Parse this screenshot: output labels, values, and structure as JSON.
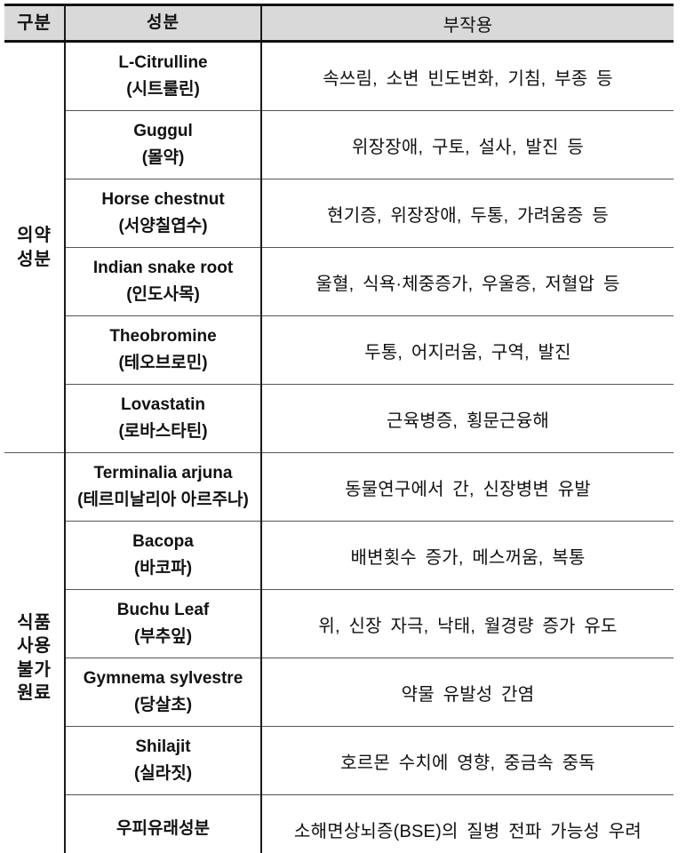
{
  "colors": {
    "header_bg": "#d9d9d9",
    "border_heavy": "#111111",
    "border_thin": "#555555",
    "text": "#111111"
  },
  "table": {
    "headers": {
      "category": "구분",
      "ingredient": "성분",
      "side_effect": "부작용"
    },
    "groups": [
      {
        "label": "의약\n성분",
        "rowspan": 6
      },
      {
        "label": "식품\n사용\n불가\n원료",
        "rowspan": 6
      }
    ],
    "rows": [
      {
        "name": "L-Citrulline\n(시트룰린)",
        "effect": "속쓰림, 소변 빈도변화, 기침, 부종 등"
      },
      {
        "name": "Guggul\n(몰약)",
        "effect": "위장장애, 구토, 설사, 발진 등"
      },
      {
        "name": "Horse chestnut\n(서양칠엽수)",
        "effect": "현기증, 위장장애, 두통, 가려움증 등"
      },
      {
        "name": "Indian snake root\n(인도사목)",
        "effect": "울혈, 식욕·체중증가, 우울증, 저혈압 등"
      },
      {
        "name": "Theobromine\n(테오브로민)",
        "effect": "두통, 어지러움, 구역, 발진"
      },
      {
        "name": "Lovastatin\n(로바스타틴)",
        "effect": "근육병증, 횡문근융해"
      },
      {
        "name": "Terminalia arjuna\n(테르미날리아 아르주나)",
        "effect": "동물연구에서 간, 신장병변 유발"
      },
      {
        "name": "Bacopa\n(바코파)",
        "effect": "배변횟수 증가, 메스꺼움, 복통"
      },
      {
        "name": "Buchu Leaf\n(부추잎)",
        "effect": "위, 신장 자극, 낙태, 월경량 증가 유도"
      },
      {
        "name": "Gymnema sylvestre\n(당살초)",
        "effect": "약물 유발성 간염"
      },
      {
        "name": "Shilajit\n(실라짓)",
        "effect": "호르몬 수치에 영향, 중금속 중독"
      },
      {
        "name": "우피유래성분",
        "effect": "소해면상뇌증(BSE)의 질병 전파 가능성 우려"
      }
    ]
  }
}
